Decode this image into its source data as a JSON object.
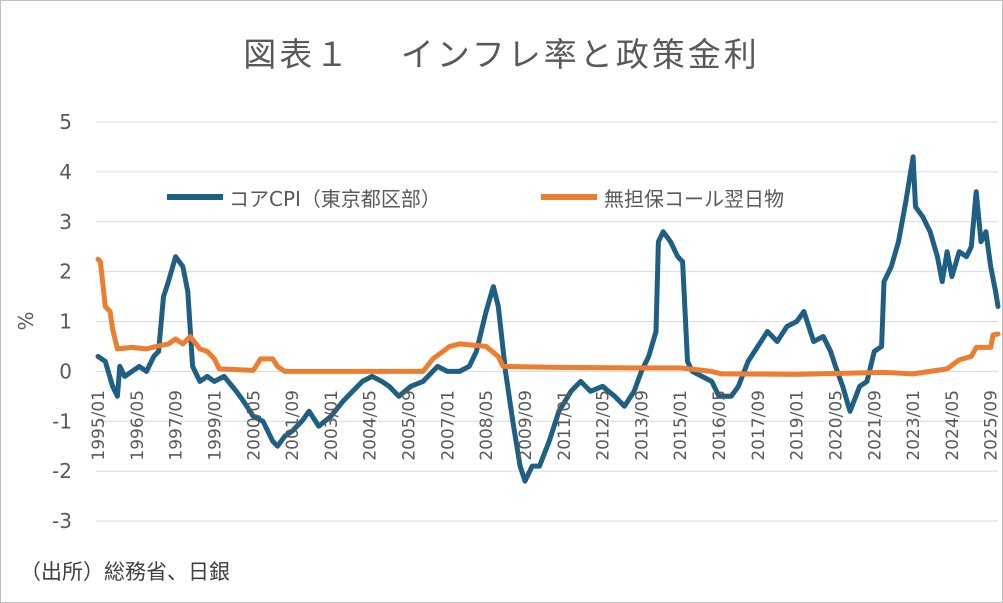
{
  "chart_data": {
    "type": "line",
    "title": "図表１　 インフレ率と政策金利",
    "xlabel": "",
    "ylabel": "%",
    "ylim": [
      -3,
      5
    ],
    "yticks": [
      "5",
      "4",
      "3",
      "2",
      "1",
      "0",
      "-1",
      "-2",
      "-3"
    ],
    "xlim": [
      "1995/01",
      "2025/12"
    ],
    "xticks": [
      "1995/01",
      "1996/05",
      "1997/09",
      "1999/01",
      "2000/05",
      "2001/09",
      "2003/01",
      "2004/05",
      "2005/09",
      "2007/01",
      "2008/05",
      "2009/09",
      "2011/01",
      "2012/05",
      "2013/09",
      "2015/01",
      "2016/05",
      "2017/09",
      "2019/01",
      "2020/05",
      "2021/09",
      "2023/01",
      "2024/05",
      "2025/09"
    ],
    "grid": "horizontal",
    "legend": "top",
    "series": [
      {
        "name": "コアCPI（東京都区部）",
        "color": "#1f5f83",
        "points": [
          [
            "1995/01",
            0.3
          ],
          [
            "1995/04",
            0.2
          ],
          [
            "1995/07",
            -0.3
          ],
          [
            "1995/09",
            -0.5
          ],
          [
            "1995/10",
            0.1
          ],
          [
            "1995/12",
            -0.1
          ],
          [
            "1996/03",
            0.0
          ],
          [
            "1996/06",
            0.1
          ],
          [
            "1996/09",
            0.0
          ],
          [
            "1996/12",
            0.3
          ],
          [
            "1997/02",
            0.4
          ],
          [
            "1997/04",
            1.5
          ],
          [
            "1997/06",
            1.8
          ],
          [
            "1997/09",
            2.3
          ],
          [
            "1997/12",
            2.1
          ],
          [
            "1998/02",
            1.6
          ],
          [
            "1998/04",
            0.1
          ],
          [
            "1998/07",
            -0.2
          ],
          [
            "1998/10",
            -0.1
          ],
          [
            "1999/01",
            -0.2
          ],
          [
            "1999/05",
            -0.1
          ],
          [
            "1999/10",
            -0.4
          ],
          [
            "2000/01",
            -0.6
          ],
          [
            "2000/05",
            -0.9
          ],
          [
            "2000/09",
            -1.0
          ],
          [
            "2001/01",
            -1.4
          ],
          [
            "2001/03",
            -1.5
          ],
          [
            "2001/06",
            -1.3
          ],
          [
            "2001/09",
            -1.2
          ],
          [
            "2002/01",
            -1.0
          ],
          [
            "2002/04",
            -0.8
          ],
          [
            "2002/08",
            -1.1
          ],
          [
            "2003/01",
            -0.9
          ],
          [
            "2003/06",
            -0.6
          ],
          [
            "2003/10",
            -0.4
          ],
          [
            "2004/02",
            -0.2
          ],
          [
            "2004/06",
            -0.1
          ],
          [
            "2004/10",
            -0.2
          ],
          [
            "2005/01",
            -0.3
          ],
          [
            "2005/05",
            -0.5
          ],
          [
            "2005/10",
            -0.3
          ],
          [
            "2006/03",
            -0.2
          ],
          [
            "2006/09",
            0.1
          ],
          [
            "2007/01",
            0.0
          ],
          [
            "2007/06",
            0.0
          ],
          [
            "2007/10",
            0.1
          ],
          [
            "2008/01",
            0.4
          ],
          [
            "2008/05",
            1.2
          ],
          [
            "2008/08",
            1.7
          ],
          [
            "2008/10",
            1.3
          ],
          [
            "2009/01",
            0.0
          ],
          [
            "2009/04",
            -1.0
          ],
          [
            "2009/07",
            -1.9
          ],
          [
            "2009/09",
            -2.2
          ],
          [
            "2009/12",
            -1.9
          ],
          [
            "2010/03",
            -1.9
          ],
          [
            "2010/07",
            -1.4
          ],
          [
            "2010/11",
            -0.8
          ],
          [
            "2011/04",
            -0.4
          ],
          [
            "2011/08",
            -0.2
          ],
          [
            "2011/12",
            -0.4
          ],
          [
            "2012/05",
            -0.3
          ],
          [
            "2012/10",
            -0.5
          ],
          [
            "2013/02",
            -0.7
          ],
          [
            "2013/06",
            -0.4
          ],
          [
            "2013/09",
            0.0
          ],
          [
            "2013/12",
            0.3
          ],
          [
            "2014/03",
            0.8
          ],
          [
            "2014/04",
            2.6
          ],
          [
            "2014/06",
            2.8
          ],
          [
            "2014/09",
            2.6
          ],
          [
            "2014/12",
            2.3
          ],
          [
            "2015/02",
            2.2
          ],
          [
            "2015/04",
            0.2
          ],
          [
            "2015/06",
            0.0
          ],
          [
            "2015/10",
            -0.1
          ],
          [
            "2016/02",
            -0.2
          ],
          [
            "2016/05",
            -0.5
          ],
          [
            "2016/10",
            -0.5
          ],
          [
            "2017/01",
            -0.3
          ],
          [
            "2017/05",
            0.2
          ],
          [
            "2017/09",
            0.5
          ],
          [
            "2018/01",
            0.8
          ],
          [
            "2018/05",
            0.6
          ],
          [
            "2018/09",
            0.9
          ],
          [
            "2019/01",
            1.0
          ],
          [
            "2019/04",
            1.2
          ],
          [
            "2019/08",
            0.6
          ],
          [
            "2019/12",
            0.7
          ],
          [
            "2020/03",
            0.4
          ],
          [
            "2020/05",
            0.1
          ],
          [
            "2020/08",
            -0.3
          ],
          [
            "2020/11",
            -0.8
          ],
          [
            "2021/03",
            -0.3
          ],
          [
            "2021/06",
            -0.2
          ],
          [
            "2021/09",
            0.4
          ],
          [
            "2021/12",
            0.5
          ],
          [
            "2022/01",
            1.8
          ],
          [
            "2022/04",
            2.1
          ],
          [
            "2022/07",
            2.6
          ],
          [
            "2022/10",
            3.4
          ],
          [
            "2023/01",
            4.3
          ],
          [
            "2023/02",
            3.3
          ],
          [
            "2023/05",
            3.1
          ],
          [
            "2023/08",
            2.8
          ],
          [
            "2023/11",
            2.3
          ],
          [
            "2024/01",
            1.8
          ],
          [
            "2024/03",
            2.4
          ],
          [
            "2024/05",
            1.9
          ],
          [
            "2024/08",
            2.4
          ],
          [
            "2024/11",
            2.3
          ],
          [
            "2025/01",
            2.5
          ],
          [
            "2025/03",
            3.6
          ],
          [
            "2025/05",
            2.6
          ],
          [
            "2025/07",
            2.8
          ],
          [
            "2025/09",
            2.1
          ],
          [
            "2025/11",
            1.6
          ],
          [
            "2025/12",
            1.3
          ]
        ]
      },
      {
        "name": "無担保コール翌日物",
        "color": "#ed7d31",
        "points": [
          [
            "1995/01",
            2.25
          ],
          [
            "1995/02",
            2.2
          ],
          [
            "1995/04",
            1.3
          ],
          [
            "1995/06",
            1.2
          ],
          [
            "1995/07",
            0.85
          ],
          [
            "1995/09",
            0.45
          ],
          [
            "1996/03",
            0.48
          ],
          [
            "1996/09",
            0.45
          ],
          [
            "1997/01",
            0.5
          ],
          [
            "1997/06",
            0.55
          ],
          [
            "1997/09",
            0.65
          ],
          [
            "1997/12",
            0.55
          ],
          [
            "1998/03",
            0.7
          ],
          [
            "1998/07",
            0.45
          ],
          [
            "1998/10",
            0.4
          ],
          [
            "1999/01",
            0.25
          ],
          [
            "1999/03",
            0.05
          ],
          [
            "2000/05",
            0.02
          ],
          [
            "2000/08",
            0.25
          ],
          [
            "2001/01",
            0.25
          ],
          [
            "2001/03",
            0.1
          ],
          [
            "2001/06",
            0.0
          ],
          [
            "2006/03",
            0.0
          ],
          [
            "2006/07",
            0.25
          ],
          [
            "2007/02",
            0.5
          ],
          [
            "2007/06",
            0.55
          ],
          [
            "2008/05",
            0.5
          ],
          [
            "2008/10",
            0.3
          ],
          [
            "2008/12",
            0.1
          ],
          [
            "2010/10",
            0.08
          ],
          [
            "2013/04",
            0.07
          ],
          [
            "2015/01",
            0.07
          ],
          [
            "2016/02",
            0.0
          ],
          [
            "2016/06",
            -0.05
          ],
          [
            "2019/01",
            -0.06
          ],
          [
            "2022/01",
            -0.02
          ],
          [
            "2023/01",
            -0.05
          ],
          [
            "2024/03",
            0.05
          ],
          [
            "2024/08",
            0.23
          ],
          [
            "2025/01",
            0.3
          ],
          [
            "2025/03",
            0.48
          ],
          [
            "2025/09",
            0.48
          ],
          [
            "2025/10",
            0.73
          ],
          [
            "2025/12",
            0.75
          ]
        ]
      }
    ]
  },
  "source_note": "（出所）総務省、日銀"
}
